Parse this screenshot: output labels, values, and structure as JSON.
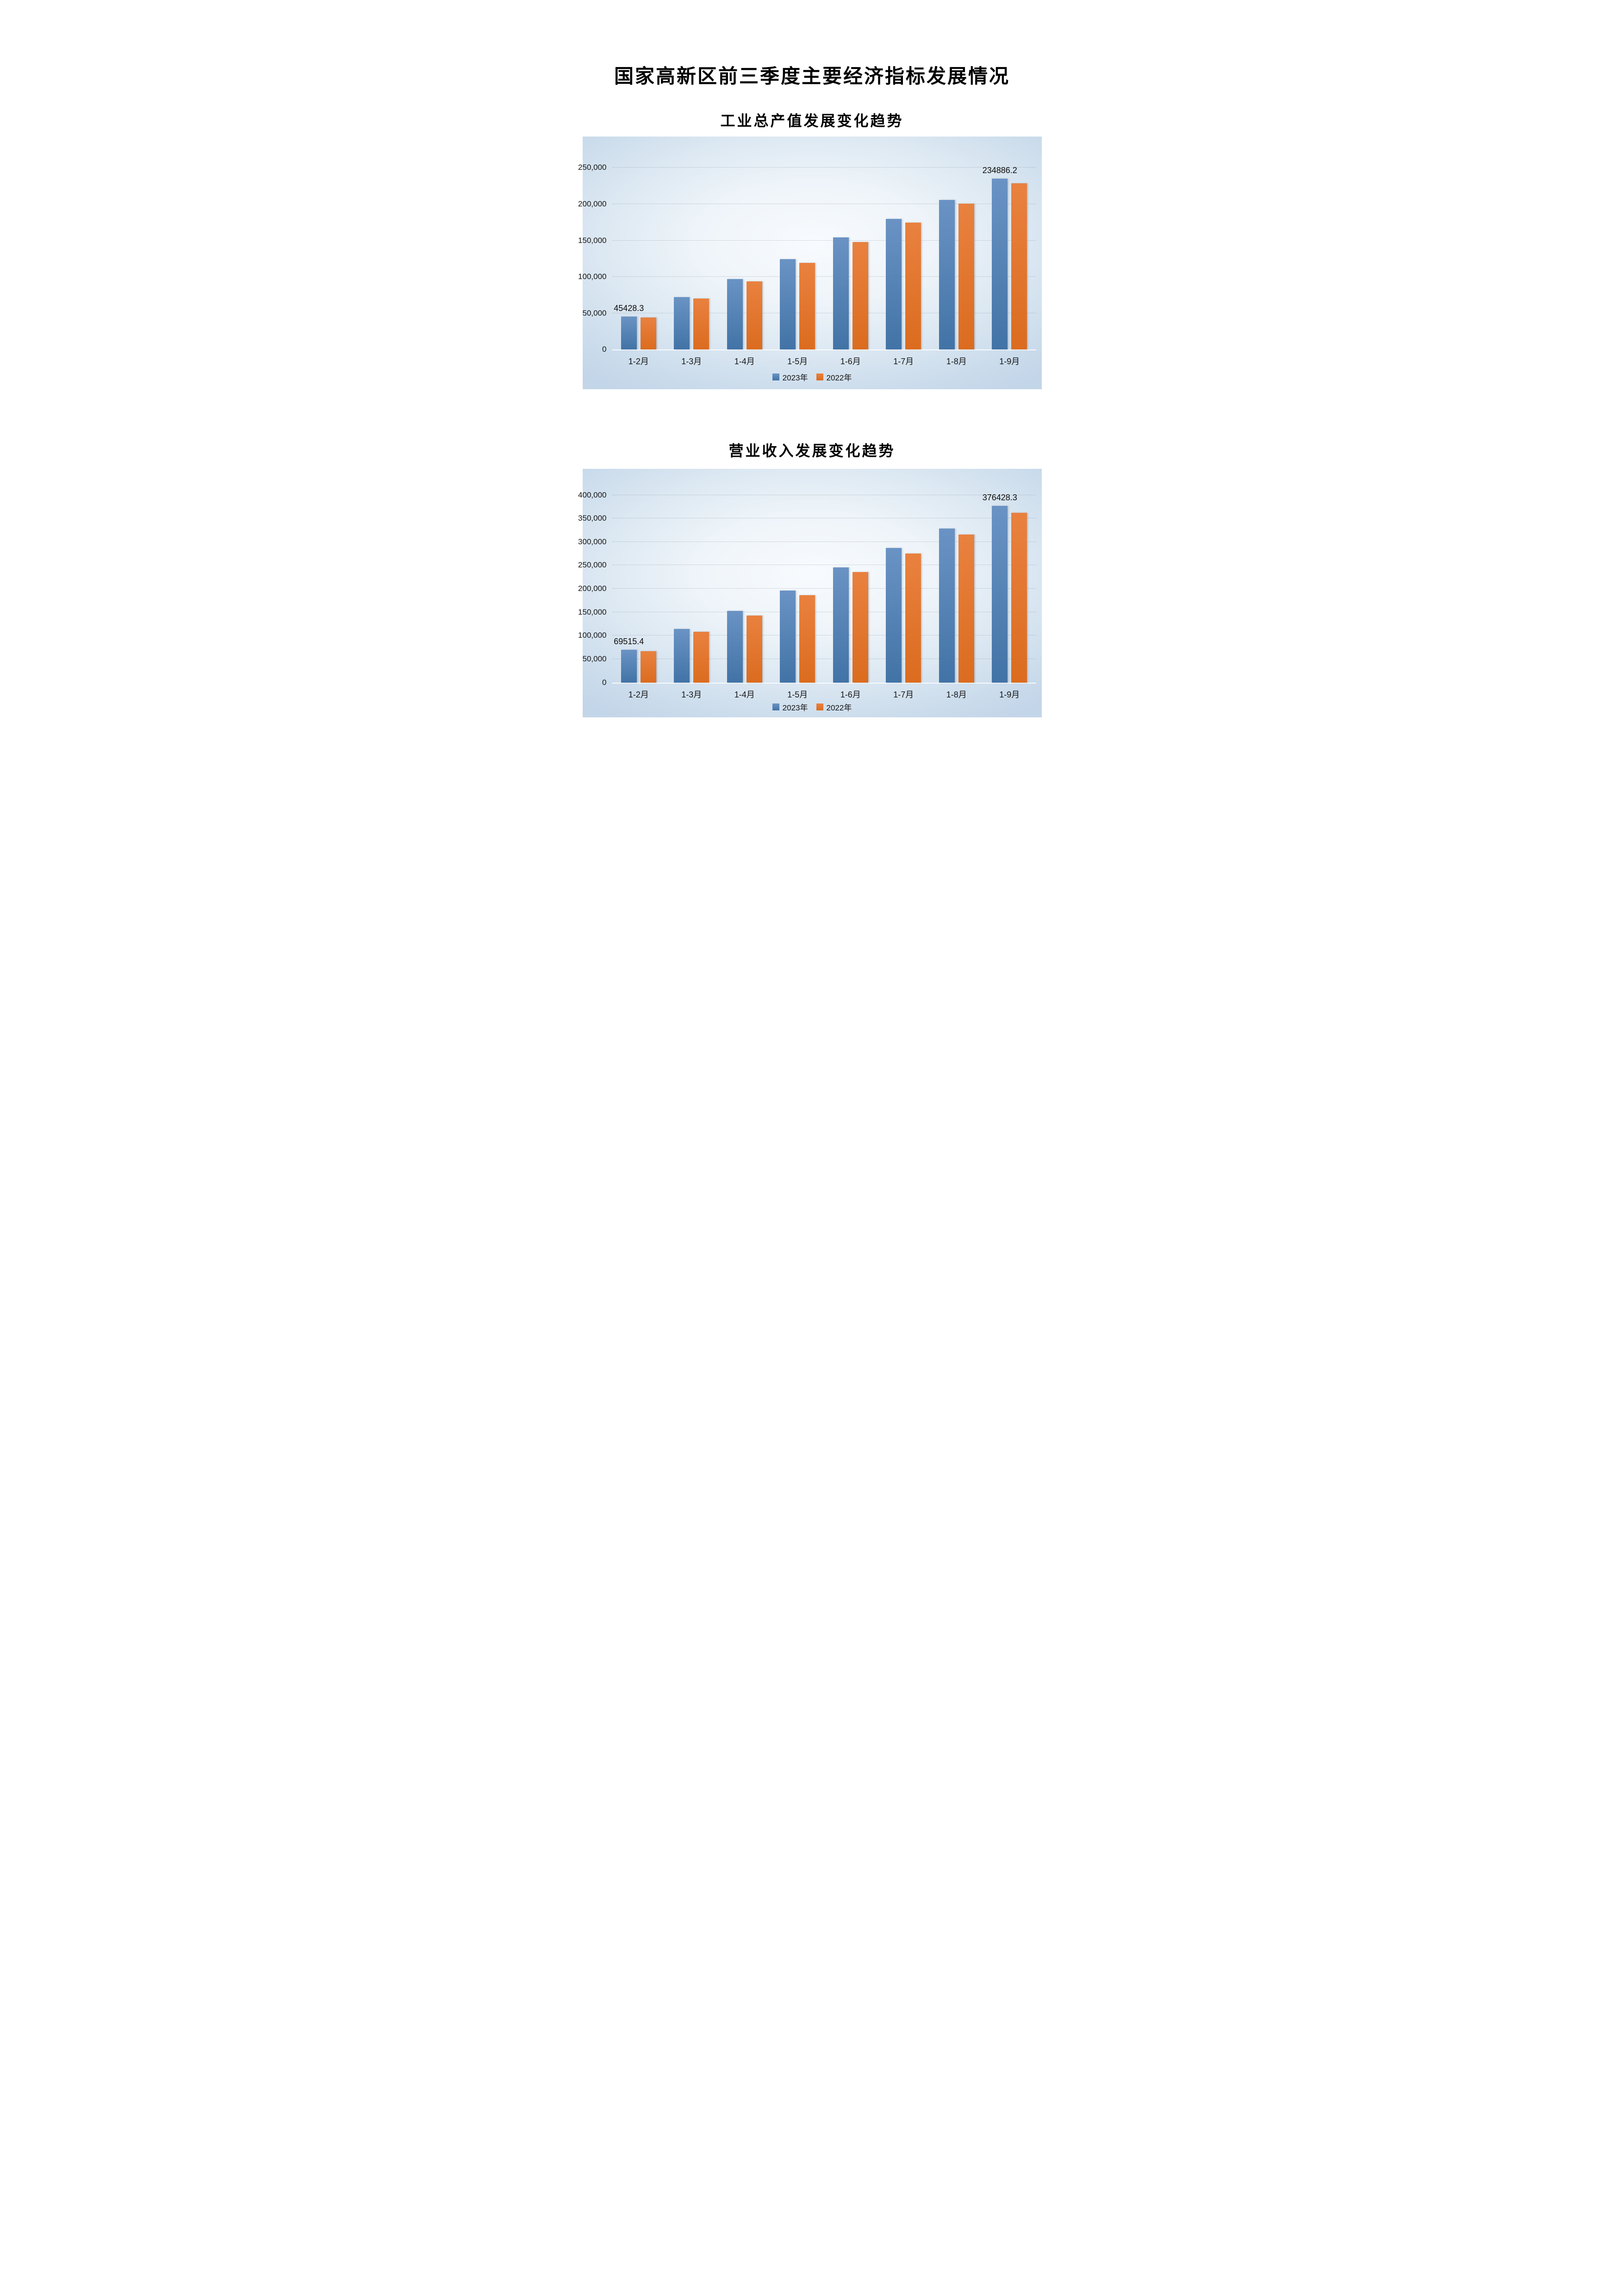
{
  "page": {
    "title": "国家高新区前三季度主要经济指标发展情况"
  },
  "colors": {
    "series_2023": "#4e86c4",
    "series_2022": "#e2712a",
    "panel_center": "#f8fbfe",
    "panel_edge": "#c3d5e8",
    "gridline": "#8a949e"
  },
  "chart_data": [
    {
      "type": "bar",
      "title": "工业总产值发展变化趋势",
      "categories": [
        "1-2月",
        "1-3月",
        "1-4月",
        "1-5月",
        "1-6月",
        "1-7月",
        "1-8月",
        "1-9月"
      ],
      "series": [
        {
          "name": "2023年",
          "color": "#4e86c4",
          "gradient": [
            "#6a93c4",
            "#4273a6"
          ],
          "values": [
            45428.3,
            72400,
            96900,
            124500,
            154200,
            179500,
            205900,
            234886.2
          ],
          "point_labels": [
            "45428.3",
            "",
            "",
            "",
            "",
            "",
            "",
            "234886.2"
          ]
        },
        {
          "name": "2022年",
          "color": "#e2712a",
          "gradient": [
            "#e9813f",
            "#db6c1f"
          ],
          "values": [
            44000,
            70300,
            93700,
            119400,
            148100,
            174300,
            200400,
            228800
          ],
          "point_labels": [
            "",
            "",
            "",
            "",
            "",
            "",
            "",
            ""
          ]
        }
      ],
      "xlabel": "",
      "ylabel": "",
      "ylim": [
        0,
        250000
      ],
      "y_ticks": [
        {
          "value": 0,
          "label": "0"
        },
        {
          "value": 50000,
          "label": "50,000"
        },
        {
          "value": 100000,
          "label": "100,000"
        },
        {
          "value": 150000,
          "label": "150,000"
        },
        {
          "value": 200000,
          "label": "200,000"
        },
        {
          "value": 250000,
          "label": "250,000"
        }
      ],
      "grid": true,
      "legend_position": "bottom"
    },
    {
      "type": "bar",
      "title": "营业收入发展变化趋势",
      "categories": [
        "1-2月",
        "1-3月",
        "1-4月",
        "1-5月",
        "1-6月",
        "1-7月",
        "1-8月",
        "1-9月"
      ],
      "series": [
        {
          "name": "2023年",
          "color": "#4e86c4",
          "gradient": [
            "#6a93c4",
            "#4273a6"
          ],
          "values": [
            69515.4,
            113700,
            153100,
            196600,
            245300,
            286600,
            328900,
            376428.3
          ],
          "point_labels": [
            "69515.4",
            "",
            "",
            "",
            "",
            "",
            "",
            "376428.3"
          ]
        },
        {
          "name": "2022年",
          "color": "#e2712a",
          "gradient": [
            "#e9813f",
            "#db6c1f"
          ],
          "values": [
            67000,
            108300,
            143200,
            186300,
            235600,
            275100,
            315800,
            361600
          ],
          "point_labels": [
            "",
            "",
            "",
            "",
            "",
            "",
            "",
            ""
          ]
        }
      ],
      "xlabel": "",
      "ylabel": "",
      "ylim": [
        0,
        400000
      ],
      "y_ticks": [
        {
          "value": 0,
          "label": "0"
        },
        {
          "value": 50000,
          "label": "50,000"
        },
        {
          "value": 100000,
          "label": "100,000"
        },
        {
          "value": 150000,
          "label": "150,000"
        },
        {
          "value": 200000,
          "label": "200,000"
        },
        {
          "value": 250000,
          "label": "250,000"
        },
        {
          "value": 300000,
          "label": "300,000"
        },
        {
          "value": 350000,
          "label": "350,000"
        },
        {
          "value": 400000,
          "label": "400,000"
        }
      ],
      "grid": true,
      "legend_position": "bottom"
    }
  ]
}
